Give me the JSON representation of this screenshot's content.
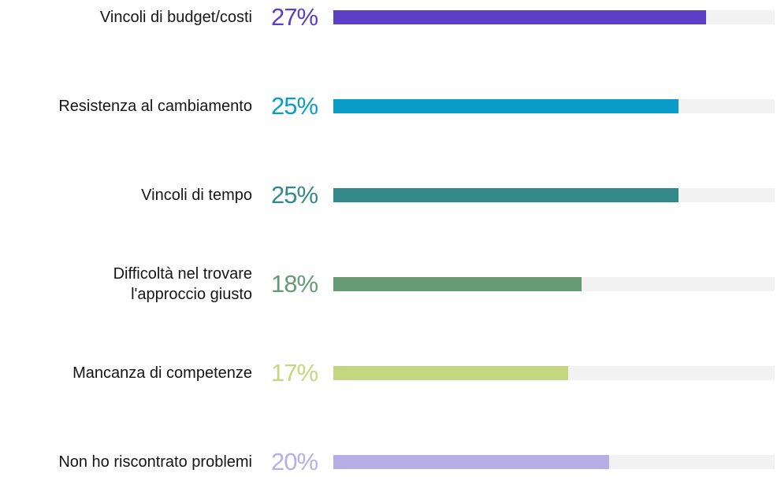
{
  "chart_data": {
    "type": "bar",
    "orientation": "horizontal",
    "categories": [
      "Vincoli di budget/costi",
      "Resistenza al cambiamento",
      "Vincoli di tempo",
      "Difficoltà nel trovare\nl'approccio giusto",
      "Mancanza di competenze",
      "Non ho riscontrato problemi"
    ],
    "values": [
      27,
      25,
      25,
      18,
      17,
      20
    ],
    "value_labels": [
      "27%",
      "25%",
      "25%",
      "18%",
      "17%",
      "20%"
    ],
    "colors": [
      "#5b3fc4",
      "#0a9cc9",
      "#33898a",
      "#659a74",
      "#c4d67f",
      "#b8aee6"
    ],
    "xlim": [
      0,
      32
    ]
  }
}
